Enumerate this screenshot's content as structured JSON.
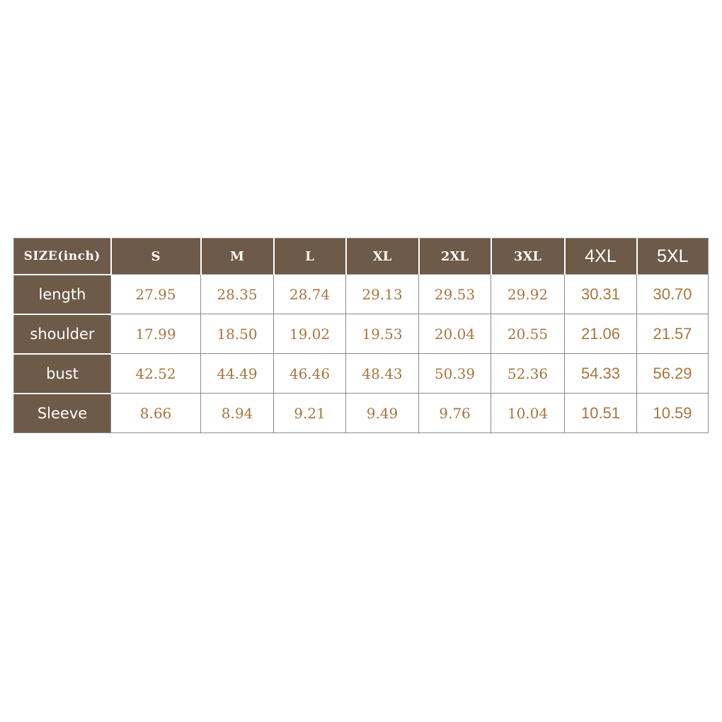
{
  "colors": {
    "header_bg": "#6e5a48",
    "header_text": "#ffffff",
    "value_text": "#a8763e",
    "border": "#8a8a8a"
  },
  "table": {
    "corner_label": "SIZE(inch)",
    "sizes": [
      "S",
      "M",
      "L",
      "XL",
      "2XL",
      "3XL",
      "4XL",
      "5XL"
    ],
    "rows": [
      {
        "label": "length",
        "values": [
          "27.95",
          "28.35",
          "28.74",
          "29.13",
          "29.53",
          "29.92",
          "30.31",
          "30.70"
        ]
      },
      {
        "label": "shoulder",
        "values": [
          "17.99",
          "18.50",
          "19.02",
          "19.53",
          "20.04",
          "20.55",
          "21.06",
          "21.57"
        ]
      },
      {
        "label": "bust",
        "values": [
          "42.52",
          "44.49",
          "46.46",
          "48.43",
          "50.39",
          "52.36",
          "54.33",
          "56.29"
        ]
      },
      {
        "label": "Sleeve",
        "values": [
          "8.66",
          "8.94",
          "9.21",
          "9.49",
          "9.76",
          "10.04",
          "10.51",
          "10.59"
        ]
      }
    ]
  }
}
